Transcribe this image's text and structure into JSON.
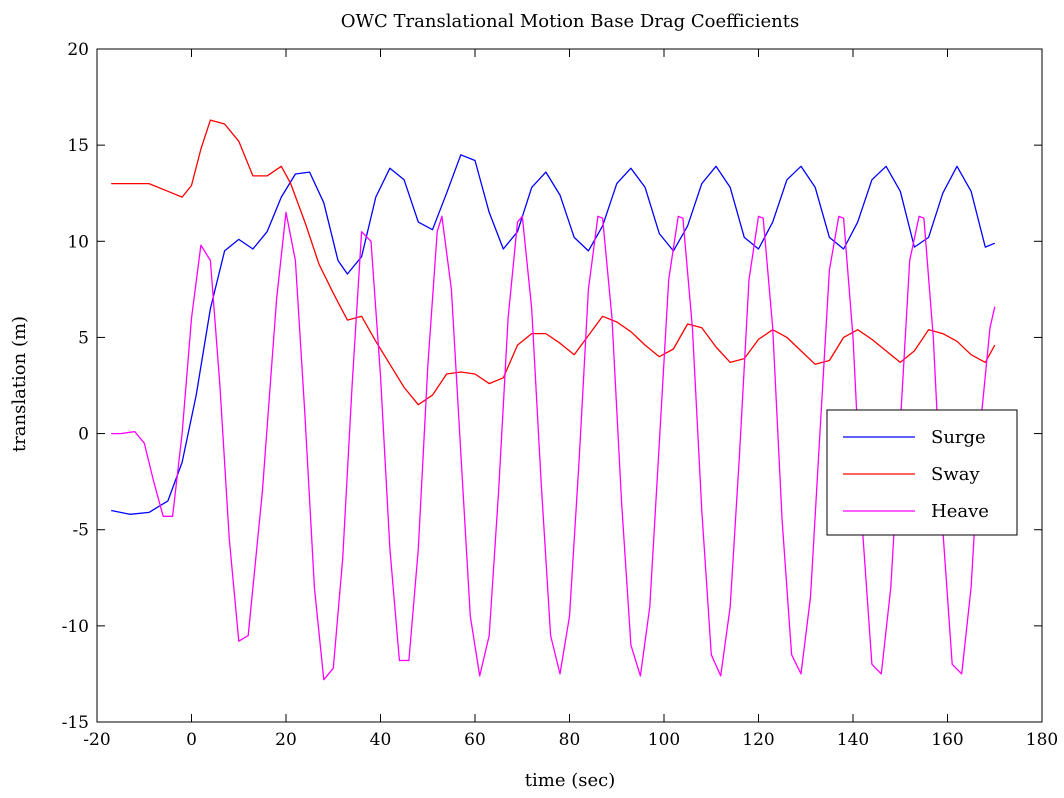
{
  "chart_data": {
    "type": "line",
    "title": "OWC Translational Motion Base Drag Coefficients",
    "xlabel": "time (sec)",
    "ylabel": "translation (m)",
    "xlim": [
      -20,
      180
    ],
    "ylim": [
      -15,
      20
    ],
    "xticks": [
      -20,
      0,
      20,
      40,
      60,
      80,
      100,
      120,
      140,
      160,
      180
    ],
    "yticks": [
      -15,
      -10,
      -5,
      0,
      5,
      10,
      15,
      20
    ],
    "xtick_labels": [
      "-20",
      "0",
      "20",
      "40",
      "60",
      "80",
      "100",
      "120",
      "140",
      "160",
      "180"
    ],
    "ytick_labels": [
      "-15",
      "-10",
      "-5",
      "0",
      "5",
      "10",
      "15",
      "20"
    ],
    "grid": false,
    "legend_position": "right",
    "series": [
      {
        "name": "Surge",
        "color": "#0000ff",
        "x": [
          -17,
          -13,
          -9,
          -5,
          -2,
          1,
          4,
          7,
          10,
          13,
          16,
          19,
          22,
          25,
          28,
          31,
          33,
          36,
          39,
          42,
          45,
          48,
          51,
          54,
          57,
          60,
          63,
          66,
          69,
          72,
          75,
          78,
          81,
          84,
          87,
          90,
          93,
          96,
          99,
          102,
          105,
          108,
          111,
          114,
          117,
          120,
          123,
          126,
          129,
          132,
          135,
          138,
          141,
          144,
          147,
          150,
          153,
          156,
          159,
          162,
          165,
          168,
          170
        ],
        "y": [
          -4.0,
          -4.2,
          -4.1,
          -3.5,
          -1.5,
          2.0,
          6.5,
          9.5,
          10.1,
          9.6,
          10.5,
          12.3,
          13.5,
          13.6,
          12.0,
          9.0,
          8.3,
          9.2,
          12.3,
          13.8,
          13.2,
          11.0,
          10.6,
          12.5,
          14.5,
          14.2,
          11.5,
          9.6,
          10.5,
          12.8,
          13.6,
          12.4,
          10.2,
          9.5,
          10.8,
          13.0,
          13.8,
          12.8,
          10.4,
          9.5,
          10.8,
          13.0,
          13.9,
          12.8,
          10.2,
          9.6,
          11.0,
          13.2,
          13.9,
          12.8,
          10.2,
          9.6,
          11.0,
          13.2,
          13.9,
          12.6,
          9.7,
          10.2,
          12.5,
          13.9,
          12.6,
          9.7,
          9.9
        ]
      },
      {
        "name": "Sway",
        "color": "#ff0000",
        "x": [
          -17,
          -13,
          -9,
          -5,
          -2,
          0,
          2,
          4,
          7,
          10,
          13,
          16,
          19,
          21,
          24,
          27,
          30,
          33,
          36,
          39,
          42,
          45,
          48,
          51,
          54,
          57,
          60,
          63,
          66,
          69,
          72,
          75,
          78,
          81,
          84,
          87,
          90,
          93,
          96,
          99,
          102,
          105,
          108,
          111,
          114,
          117,
          120,
          123,
          126,
          129,
          132,
          135,
          138,
          141,
          144,
          147,
          150,
          153,
          156,
          159,
          162,
          165,
          168,
          170
        ],
        "y": [
          13.0,
          13.0,
          13.0,
          12.6,
          12.3,
          12.9,
          14.8,
          16.3,
          16.1,
          15.2,
          13.4,
          13.4,
          13.9,
          13.0,
          11.0,
          8.8,
          7.3,
          5.9,
          6.1,
          4.8,
          3.6,
          2.4,
          1.5,
          2.0,
          3.1,
          3.2,
          3.1,
          2.6,
          2.9,
          4.6,
          5.2,
          5.2,
          4.7,
          4.1,
          5.1,
          6.1,
          5.8,
          5.3,
          4.6,
          4.0,
          4.4,
          5.7,
          5.5,
          4.5,
          3.7,
          3.9,
          4.9,
          5.4,
          5.0,
          4.3,
          3.6,
          3.8,
          5.0,
          5.4,
          4.9,
          4.3,
          3.7,
          4.3,
          5.4,
          5.2,
          4.8,
          4.1,
          3.7,
          4.6
        ]
      },
      {
        "name": "Heave",
        "color": "#ff00ff",
        "x": [
          -17,
          -15,
          -12,
          -10,
          -8,
          -6,
          -4,
          -2,
          0,
          2,
          4,
          6,
          8,
          10,
          12,
          15,
          18,
          20,
          22,
          24,
          26,
          28,
          30,
          32,
          34,
          36,
          38,
          40,
          42,
          44,
          46,
          48,
          50,
          52,
          53,
          55,
          57,
          59,
          61,
          63,
          65,
          67,
          69,
          70,
          72,
          74,
          76,
          78,
          80,
          82,
          84,
          86,
          87,
          89,
          91,
          93,
          95,
          97,
          99,
          101,
          103,
          104,
          106,
          108,
          110,
          112,
          114,
          116,
          118,
          120,
          121,
          123,
          125,
          127,
          129,
          131,
          133,
          135,
          137,
          138,
          140,
          142,
          144,
          146,
          148,
          150,
          152,
          154,
          155,
          157,
          159,
          161,
          163,
          165,
          167,
          169,
          170
        ],
        "y": [
          0.0,
          0.0,
          0.1,
          -0.5,
          -2.5,
          -4.3,
          -4.3,
          0.0,
          6.0,
          9.8,
          9.0,
          2.5,
          -5.5,
          -10.8,
          -10.5,
          -3.0,
          7.0,
          11.5,
          9.0,
          1.0,
          -8.0,
          -12.8,
          -12.2,
          -6.5,
          2.5,
          10.5,
          10.0,
          3.0,
          -6.0,
          -11.8,
          -11.8,
          -6.0,
          3.5,
          10.5,
          11.3,
          7.5,
          -1.0,
          -9.5,
          -12.6,
          -10.5,
          -3.0,
          6.0,
          11.0,
          11.3,
          6.5,
          -2.5,
          -10.5,
          -12.5,
          -9.5,
          -1.5,
          7.5,
          11.3,
          11.2,
          6.0,
          -3.5,
          -11.0,
          -12.6,
          -9.0,
          -0.5,
          8.0,
          11.3,
          11.2,
          5.5,
          -4.0,
          -11.5,
          -12.6,
          -9.0,
          -1.0,
          8.0,
          11.3,
          11.2,
          5.5,
          -4.5,
          -11.5,
          -12.5,
          -8.5,
          0.0,
          8.5,
          11.3,
          11.2,
          5.0,
          -5.0,
          -12.0,
          -12.5,
          -8.0,
          0.5,
          9.0,
          11.3,
          11.2,
          5.0,
          -5.0,
          -12.0,
          -12.5,
          -8.0,
          0.5,
          5.5,
          6.6
        ]
      }
    ]
  }
}
